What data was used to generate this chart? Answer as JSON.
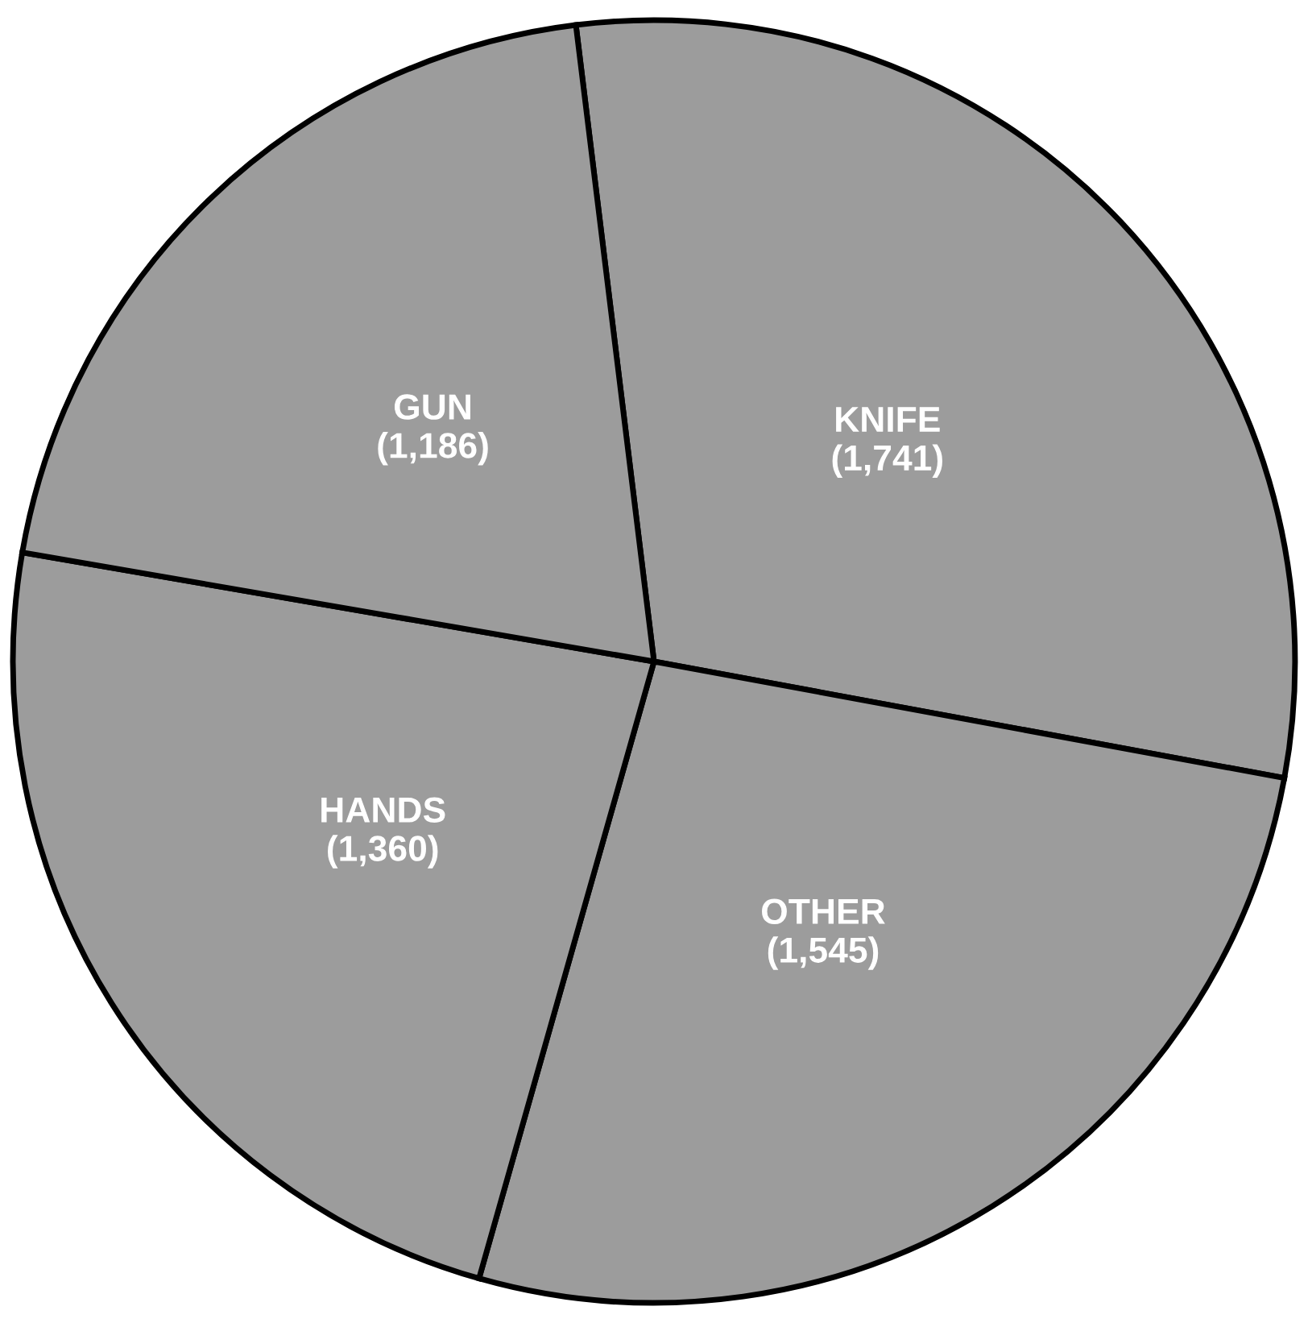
{
  "chart_data": {
    "type": "pie",
    "categories": [
      "KNIFE",
      "OTHER",
      "HANDS",
      "GUN"
    ],
    "values": [
      1741,
      1545,
      1360,
      1186
    ],
    "value_labels": [
      "(1,741)",
      "(1,545)",
      "(1,360)",
      "(1,186)"
    ],
    "colors": [
      "#9c9c9c",
      "#9c9c9c",
      "#9c9c9c",
      "#9c9c9c"
    ],
    "legend": false
  }
}
